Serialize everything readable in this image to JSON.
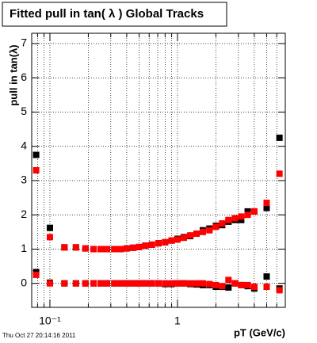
{
  "chart_data": {
    "type": "scatter",
    "title": "Fitted pull in tan( λ )  Global Tracks",
    "y_label": "pull in tan(λ)",
    "x_label": "pT (GeV/c)",
    "timestamp": "Thu Oct 27 20:14:16 2011",
    "log_x": true,
    "grid": true,
    "xlim": [
      0.072,
      7
    ],
    "ylim": [
      -0.7,
      7.3
    ],
    "xticks": [
      {
        "value": 0.1,
        "label": "10⁻¹"
      },
      {
        "value": 1,
        "label": "1"
      }
    ],
    "xminor": [
      0.08,
      0.09,
      0.2,
      0.3,
      0.4,
      0.5,
      0.6,
      0.7,
      0.8,
      0.9,
      2,
      3,
      4,
      5,
      6,
      7
    ],
    "yticks": [
      0,
      1,
      2,
      3,
      4,
      5,
      6,
      7
    ],
    "x": [
      0.078,
      0.1,
      0.13,
      0.16,
      0.19,
      0.22,
      0.25,
      0.28,
      0.32,
      0.36,
      0.4,
      0.45,
      0.5,
      0.56,
      0.63,
      0.71,
      0.8,
      0.9,
      1.0,
      1.12,
      1.26,
      1.41,
      1.58,
      1.78,
      2.0,
      2.24,
      2.51,
      2.82,
      3.16,
      3.55,
      4.0,
      5.0,
      6.3
    ],
    "series": [
      {
        "color": "#000000",
        "values": [
          3.75,
          1.62,
          1.05,
          1.05,
          1.02,
          1.0,
          1.0,
          1.0,
          1.0,
          1.0,
          1.02,
          1.04,
          1.06,
          1.1,
          1.13,
          1.17,
          1.2,
          1.25,
          1.3,
          1.35,
          1.38,
          1.45,
          1.55,
          1.6,
          1.68,
          1.7,
          1.8,
          1.85,
          1.85,
          2.1,
          2.1,
          2.2,
          4.25
        ]
      },
      {
        "color": "#000000",
        "values": [
          0.33,
          0.02,
          0.0,
          0.0,
          0.0,
          0.0,
          0.0,
          0.0,
          0.0,
          0.0,
          0.0,
          0.0,
          0.0,
          0.0,
          0.0,
          0.0,
          -0.02,
          -0.02,
          0.0,
          0.0,
          -0.02,
          -0.03,
          -0.05,
          -0.05,
          -0.1,
          -0.1,
          -0.12,
          0.0,
          -0.05,
          -0.08,
          -0.15,
          0.2,
          -0.15
        ]
      },
      {
        "color": "#ff0000",
        "values": [
          3.3,
          1.35,
          1.05,
          1.05,
          1.02,
          1.0,
          1.0,
          1.0,
          1.0,
          1.0,
          1.02,
          1.04,
          1.06,
          1.1,
          1.13,
          1.17,
          1.2,
          1.25,
          1.28,
          1.33,
          1.4,
          1.45,
          1.5,
          1.55,
          1.65,
          1.75,
          1.85,
          1.9,
          1.95,
          2.0,
          2.1,
          2.35,
          3.2
        ]
      },
      {
        "color": "#ff0000",
        "values": [
          0.25,
          0.0,
          0.0,
          0.0,
          0.0,
          0.0,
          0.0,
          0.0,
          0.0,
          0.0,
          0.0,
          0.0,
          0.0,
          0.0,
          0.0,
          0.0,
          0.0,
          0.0,
          0.0,
          0.0,
          0.0,
          0.0,
          0.0,
          -0.02,
          -0.05,
          -0.08,
          0.1,
          0.0,
          -0.05,
          -0.05,
          -0.1,
          -0.1,
          -0.2
        ]
      }
    ]
  }
}
